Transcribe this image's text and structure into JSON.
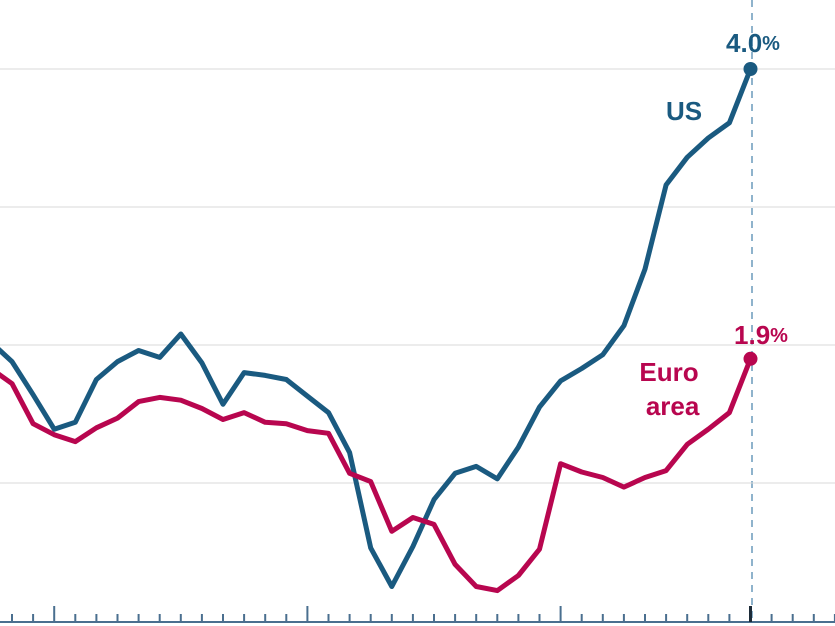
{
  "chart_data": {
    "type": "line",
    "categories": [
      null,
      null,
      null,
      null,
      null,
      null,
      null,
      null,
      null,
      null,
      null,
      null,
      null,
      null,
      null,
      null,
      null,
      null,
      null,
      null,
      null,
      null,
      null,
      null,
      null,
      null,
      null,
      null,
      null,
      null,
      null,
      null,
      null,
      null,
      null,
      null,
      null
    ],
    "ylim": [
      0,
      4.5
    ],
    "yticks": [
      1,
      2,
      3,
      4
    ],
    "grid": true,
    "series": [
      {
        "name": "US",
        "color": "#1a5a80",
        "values": [
          2.02,
          1.88,
          1.64,
          1.39,
          1.44,
          1.75,
          1.88,
          1.96,
          1.91,
          2.08,
          1.87,
          1.57,
          1.8,
          1.78,
          1.75,
          1.63,
          1.51,
          1.22,
          0.53,
          0.25,
          0.54,
          0.88,
          1.07,
          1.12,
          1.03,
          1.26,
          1.55,
          1.74,
          1.83,
          1.93,
          2.14,
          2.55,
          3.16,
          3.36,
          3.5,
          3.61,
          4.0
        ],
        "value_labels": [
          null,
          null,
          null,
          null,
          null,
          null,
          null,
          null,
          null,
          null,
          null,
          null,
          null,
          null,
          null,
          null,
          null,
          null,
          null,
          null,
          null,
          null,
          null,
          null,
          null,
          null,
          null,
          null,
          null,
          null,
          null,
          null,
          null,
          null,
          null,
          null,
          "4.0%"
        ]
      },
      {
        "name": "Euro area",
        "color": "#b8064f",
        "values": [
          1.83,
          1.72,
          1.43,
          1.35,
          1.3,
          1.4,
          1.47,
          1.59,
          1.62,
          1.6,
          1.54,
          1.46,
          1.51,
          1.44,
          1.43,
          1.38,
          1.36,
          1.07,
          1.01,
          0.65,
          0.75,
          0.7,
          0.41,
          0.25,
          0.22,
          0.33,
          0.52,
          1.14,
          1.08,
          1.04,
          0.97,
          1.04,
          1.09,
          1.28,
          1.39,
          1.51,
          1.9
        ],
        "value_labels": [
          null,
          null,
          null,
          null,
          null,
          null,
          null,
          null,
          null,
          null,
          null,
          null,
          null,
          null,
          null,
          null,
          null,
          null,
          null,
          null,
          null,
          null,
          null,
          null,
          null,
          null,
          null,
          null,
          null,
          null,
          null,
          null,
          null,
          null,
          null,
          null,
          "1.9%"
        ]
      }
    ]
  }
}
